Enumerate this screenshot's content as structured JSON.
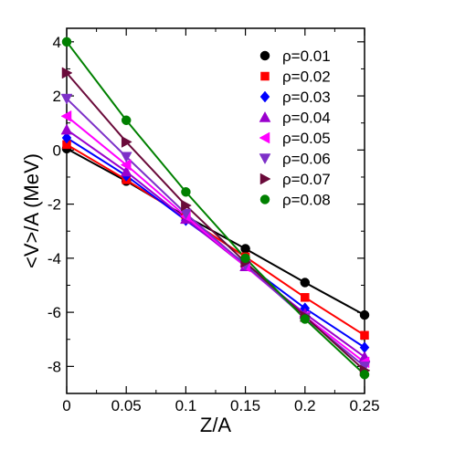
{
  "chart_data": {
    "type": "line",
    "xlabel": "Z/A",
    "ylabel": "<V>/A (MeV)",
    "xlim": [
      0,
      0.25
    ],
    "ylim": [
      -9,
      4.5
    ],
    "x_ticks": [
      0,
      0.05,
      0.1,
      0.15,
      0.2,
      0.25
    ],
    "x_tick_labels": [
      "0",
      "0.05",
      "0.1",
      "0.15",
      "0.2",
      "0.25"
    ],
    "y_ticks": [
      -8,
      -6,
      -4,
      -2,
      0,
      2,
      4
    ],
    "y_tick_labels": [
      "-8",
      "-6",
      "-4",
      "-2",
      "0",
      "2",
      "4"
    ],
    "grid": false,
    "legend_position": "top-right",
    "x": [
      0,
      0.05,
      0.1,
      0.15,
      0.2,
      0.25
    ],
    "series": [
      {
        "name": "ρ=0.01",
        "color": "#000000",
        "marker": "circle",
        "values": [
          0.05,
          -1.15,
          -2.45,
          -3.65,
          -4.9,
          -6.1
        ]
      },
      {
        "name": "ρ=0.02",
        "color": "#ff0000",
        "marker": "square",
        "values": [
          0.2,
          -1.1,
          -2.5,
          -3.95,
          -5.45,
          -6.85
        ]
      },
      {
        "name": "ρ=0.03",
        "color": "#0000ff",
        "marker": "diamond",
        "values": [
          0.45,
          -0.95,
          -2.6,
          -4.2,
          -5.85,
          -7.3
        ]
      },
      {
        "name": "ρ=0.04",
        "color": "#9a00cd",
        "marker": "triangle-up",
        "values": [
          0.75,
          -0.8,
          -2.55,
          -4.3,
          -6.05,
          -7.65
        ]
      },
      {
        "name": "ρ=0.05",
        "color": "#ff00ff",
        "marker": "triangle-left",
        "values": [
          1.25,
          -0.55,
          -2.45,
          -4.3,
          -6.15,
          -7.85
        ]
      },
      {
        "name": "ρ=0.06",
        "color": "#7d30c8",
        "marker": "triangle-down",
        "values": [
          1.9,
          -0.25,
          -2.35,
          -4.25,
          -6.2,
          -8.0
        ]
      },
      {
        "name": "ρ=0.07",
        "color": "#6a0a3a",
        "marker": "triangle-right",
        "values": [
          2.85,
          0.3,
          -2.05,
          -4.15,
          -6.15,
          -8.15
        ]
      },
      {
        "name": "ρ=0.08",
        "color": "#008000",
        "marker": "circle",
        "values": [
          4.0,
          1.1,
          -1.55,
          -4.0,
          -6.25,
          -8.3
        ]
      }
    ]
  }
}
